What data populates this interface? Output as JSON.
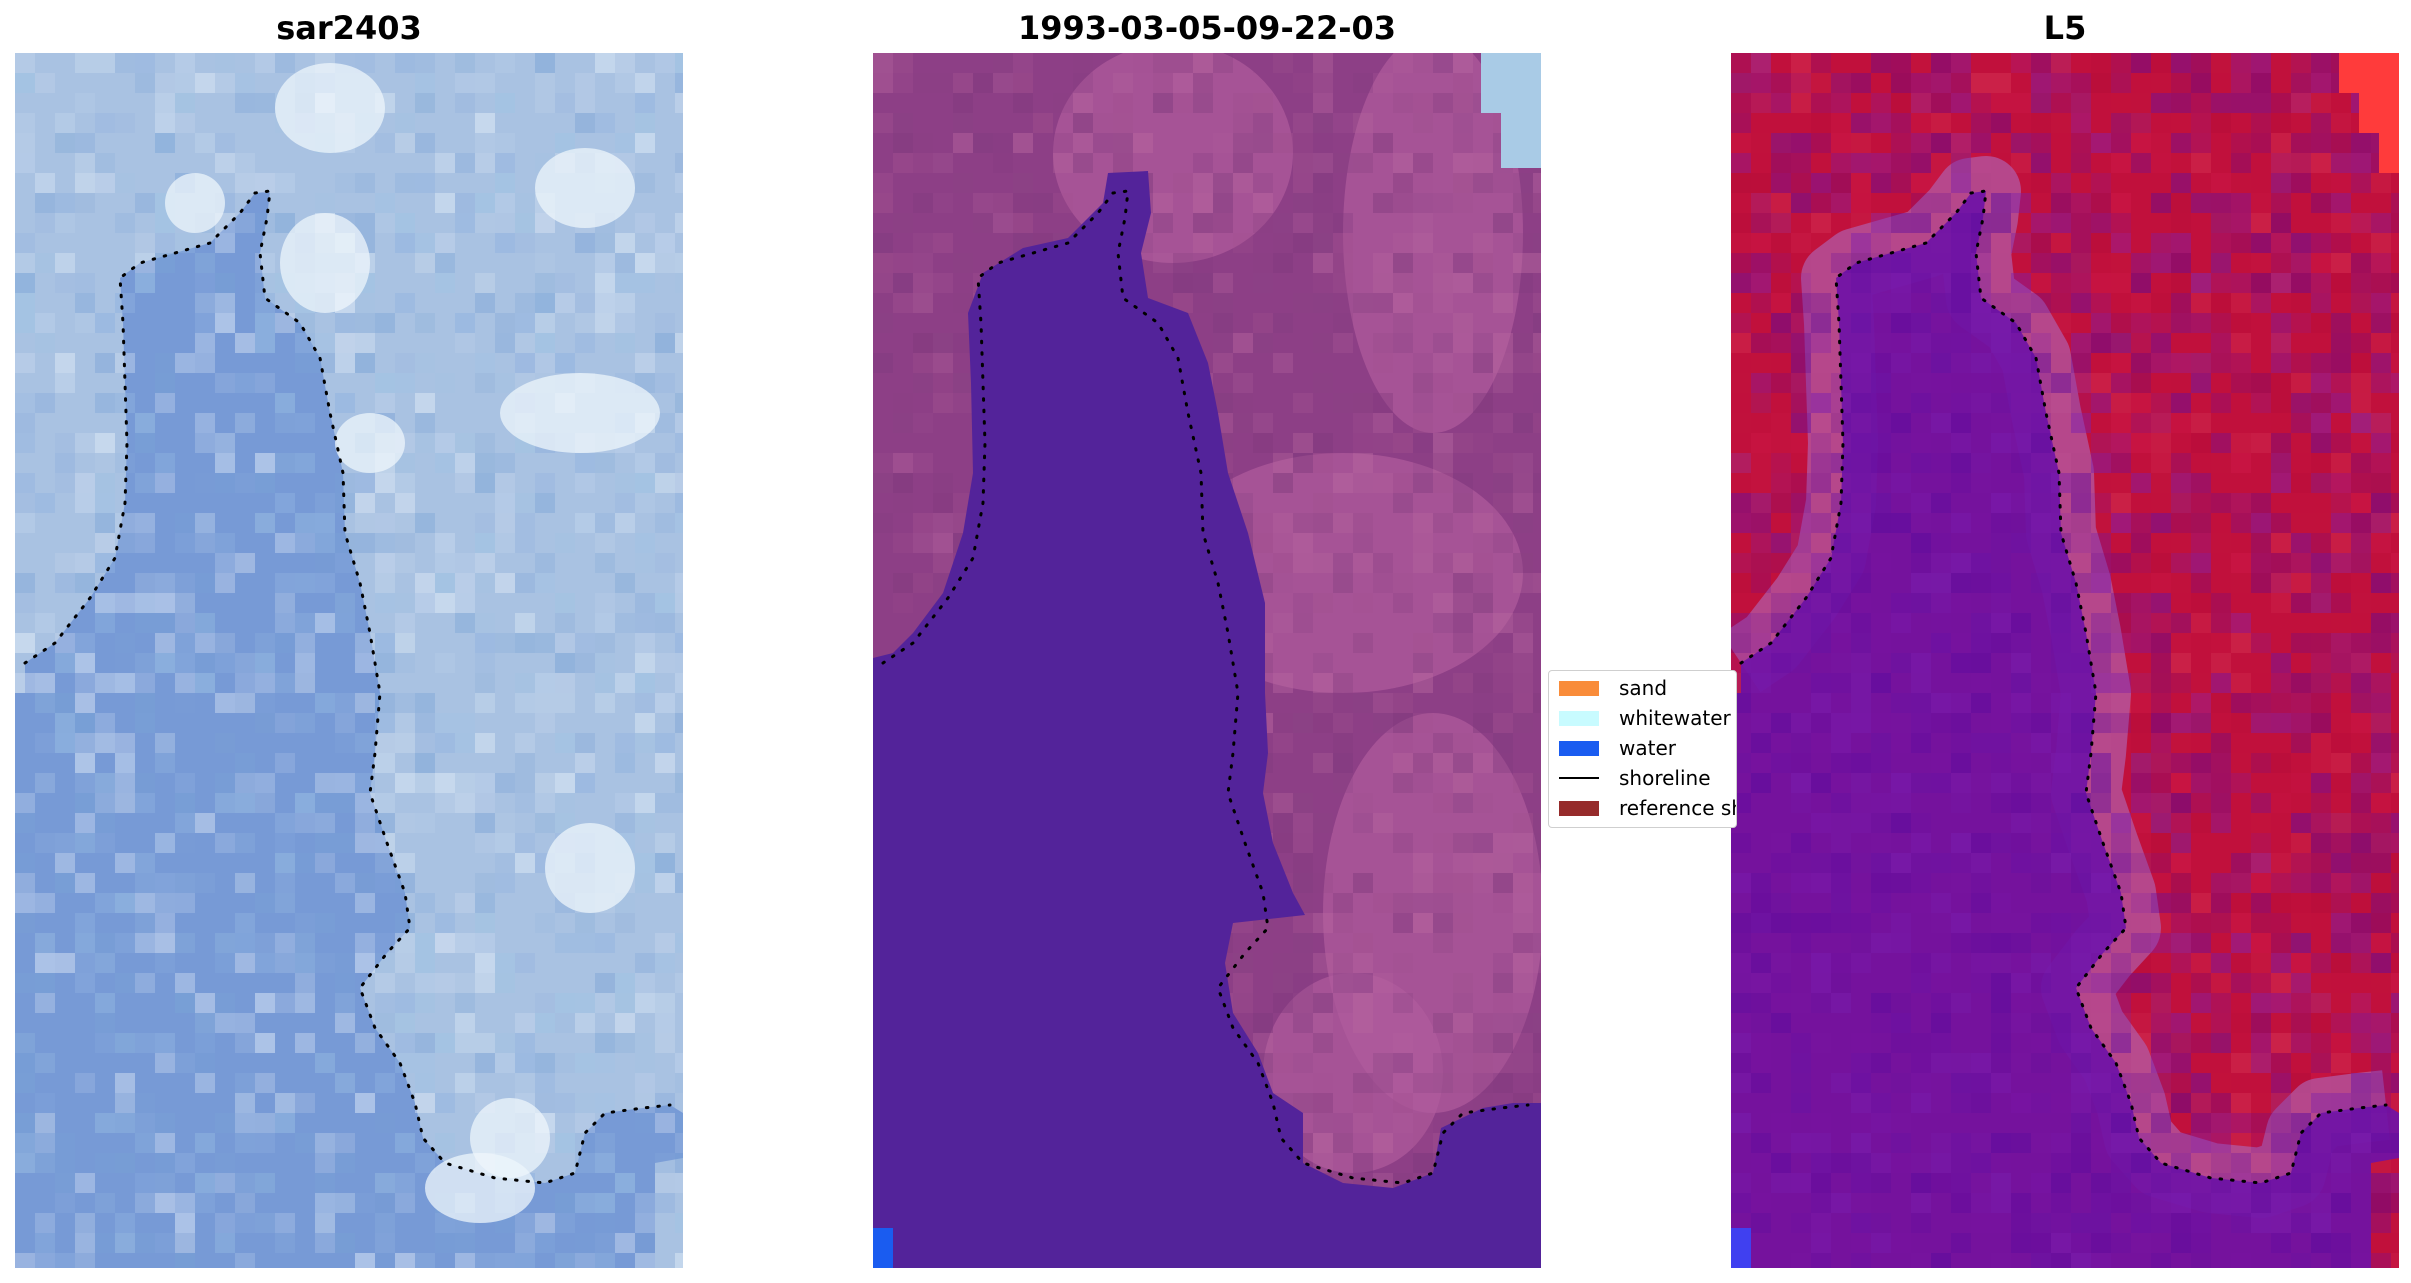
{
  "panels": [
    {
      "title": "sar2403",
      "style": "sar"
    },
    {
      "title": "1993-03-05-09-22-03",
      "style": "class"
    },
    {
      "title": "L5",
      "style": "index"
    }
  ],
  "legend": [
    {
      "label": "sand",
      "color": "#f98c3a",
      "kind": "patch"
    },
    {
      "label": "whitewater",
      "color": "#c8fbff",
      "kind": "patch"
    },
    {
      "label": "water",
      "color": "#1a5cf0",
      "kind": "patch"
    },
    {
      "label": "shoreline",
      "color": "#000000",
      "kind": "line"
    },
    {
      "label": "reference shoreline",
      "color": "#962b2b",
      "kind": "patch"
    }
  ],
  "colors": {
    "sar_water": "#6f93d4",
    "sar_land": "#a9c2e2",
    "sar_bright": "#eef6fb",
    "class_water": "#53239a",
    "class_land": "#8d3f86",
    "class_land_light": "#b05d9c",
    "index_water": "#6f12a6",
    "index_land": "#c1103c",
    "index_edge": "#b15aa6"
  }
}
